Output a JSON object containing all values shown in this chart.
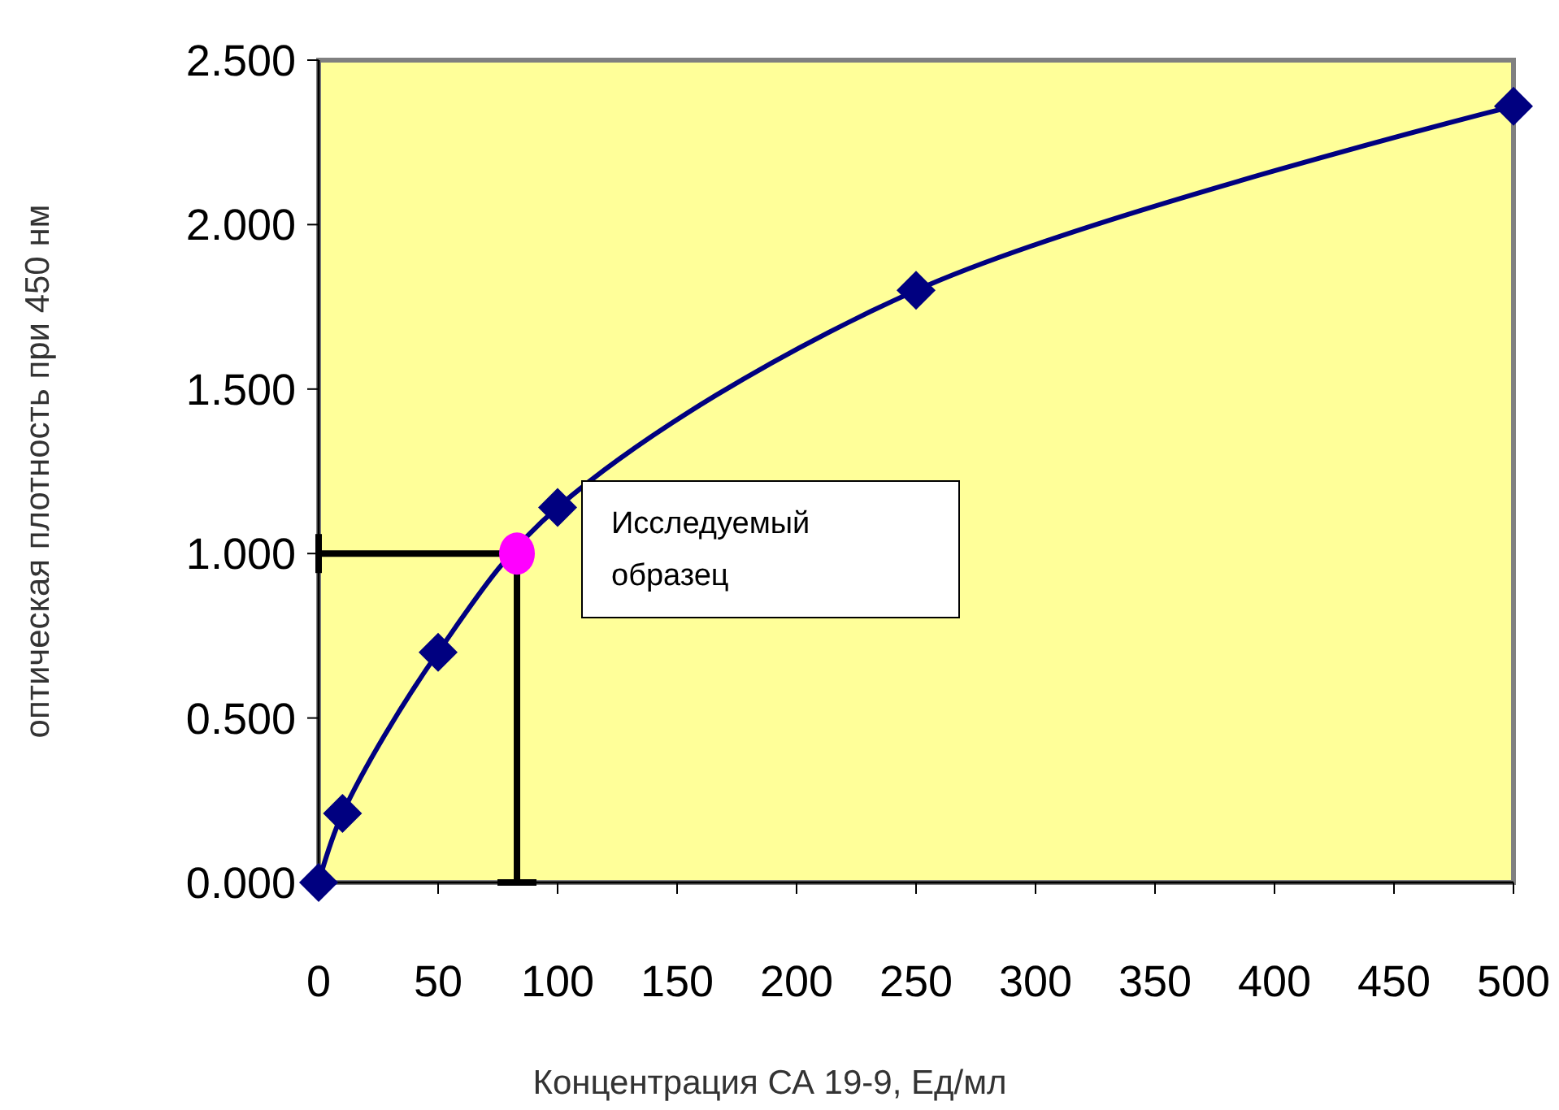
{
  "chart_data": {
    "type": "line",
    "xlabel": "Концентрация СА 19-9, Ед/мл",
    "ylabel": "оптическая плотность при 450 нм",
    "xlim": [
      0,
      500
    ],
    "xticks": [
      0,
      50,
      100,
      150,
      200,
      250,
      300,
      350,
      400,
      450,
      500
    ],
    "ylim": [
      0,
      2.5
    ],
    "yticks": [
      {
        "value": 0,
        "label": "0.000"
      },
      {
        "value": 0.5,
        "label": "0.500"
      },
      {
        "value": 1,
        "label": "1.000"
      },
      {
        "value": 1.5,
        "label": "1.500"
      },
      {
        "value": 2,
        "label": "2.000"
      },
      {
        "value": 2.5,
        "label": "2.500"
      }
    ],
    "grid": false,
    "marker": "diamond",
    "line_style": "solid",
    "series": [
      {
        "color": "#000080",
        "x": [
          0,
          10,
          50,
          100,
          250,
          500
        ],
        "values": [
          0,
          0.21,
          0.7,
          1.14,
          1.8,
          2.36
        ]
      },
      {
        "type": "scatter",
        "marker": "circle",
        "color": "#ff00ff",
        "x": [
          83
        ],
        "values": [
          1.0
        ]
      }
    ],
    "ref_lines": [
      {
        "axis": "x",
        "value": 83,
        "color": "#000000"
      },
      {
        "axis": "y",
        "value": 1.0,
        "color": "#000000"
      }
    ],
    "annotations": [
      "Исследуемый образец"
    ]
  }
}
